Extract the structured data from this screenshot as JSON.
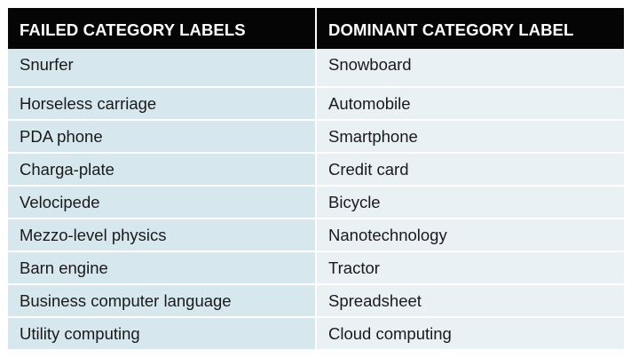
{
  "table": {
    "headers": [
      "FAILED CATEGORY LABELS",
      "DOMINANT CATEGORY LABEL"
    ],
    "rows": [
      [
        "Snurfer",
        "Snowboard"
      ],
      [
        "Horseless carriage",
        "Automobile"
      ],
      [
        "PDA phone",
        "Smartphone"
      ],
      [
        "Charga-plate",
        "Credit card"
      ],
      [
        "Velocipede",
        "Bicycle"
      ],
      [
        "Mezzo-level physics",
        "Nanotechnology"
      ],
      [
        "Barn engine",
        "Tractor"
      ],
      [
        "Business computer language",
        "Spreadsheet"
      ],
      [
        "Utility computing",
        "Cloud computing"
      ]
    ]
  },
  "colors": {
    "header_bg": "#050505",
    "header_text": "#ffffff",
    "col_a_bg": "#d6e7ee",
    "col_b_bg": "#e9f1f5"
  }
}
